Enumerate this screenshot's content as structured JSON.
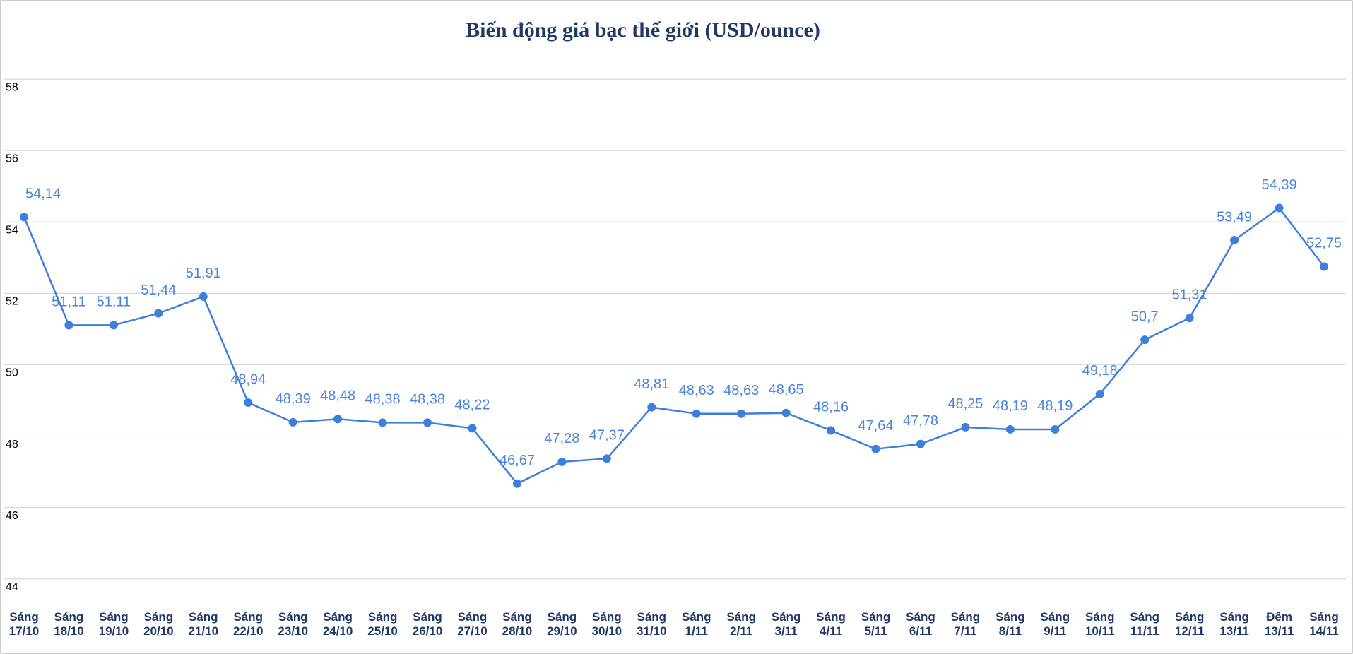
{
  "chart_data": {
    "type": "line",
    "title": "Biến động giá bạc thế giới (USD/ounce)",
    "categories": [
      "Sáng 17/10",
      "Sáng 18/10",
      "Sáng 19/10",
      "Sáng 20/10",
      "Sáng 21/10",
      "Sáng 22/10",
      "Sáng 23/10",
      "Sáng 24/10",
      "Sáng 25/10",
      "Sáng 26/10",
      "Sáng 27/10",
      "Sáng 28/10",
      "Sáng 29/10",
      "Sáng 30/10",
      "Sáng 31/10",
      "Sáng 1/11",
      "Sáng 2/11",
      "Sáng 3/11",
      "Sáng 4/11",
      "Sáng 5/11",
      "Sáng 6/11",
      "Sáng 7/11",
      "Sáng 8/11",
      "Sáng 9/11",
      "Sáng 10/11",
      "Sáng 11/11",
      "Sáng 12/11",
      "Sáng 13/11",
      "Đêm 13/11",
      "Sáng 14/11"
    ],
    "values": [
      54.14,
      51.11,
      51.11,
      51.44,
      51.91,
      48.94,
      48.39,
      48.48,
      48.38,
      48.38,
      48.22,
      46.67,
      47.28,
      47.37,
      48.81,
      48.63,
      48.63,
      48.65,
      48.16,
      47.64,
      47.78,
      48.25,
      48.19,
      48.19,
      49.18,
      50.7,
      51.31,
      53.49,
      54.39,
      52.75
    ],
    "value_labels": [
      "54,14",
      "51,11",
      "51,11",
      "51,44",
      "51,91",
      "48,94",
      "48,39",
      "48,48",
      "48,38",
      "48,38",
      "48,22",
      "46,67",
      "47,28",
      "47,37",
      "48,81",
      "48,63",
      "48,63",
      "48,65",
      "48,16",
      "47,64",
      "47,78",
      "48,25",
      "48,19",
      "48,19",
      "49,18",
      "50,7",
      "51,31",
      "53,49",
      "54,39",
      "52,75"
    ],
    "color": "#3f7fdc",
    "ylim": [
      43.5,
      60
    ],
    "yticks": [
      44,
      46,
      48,
      50,
      52,
      54,
      56,
      58
    ],
    "grid": true
  }
}
